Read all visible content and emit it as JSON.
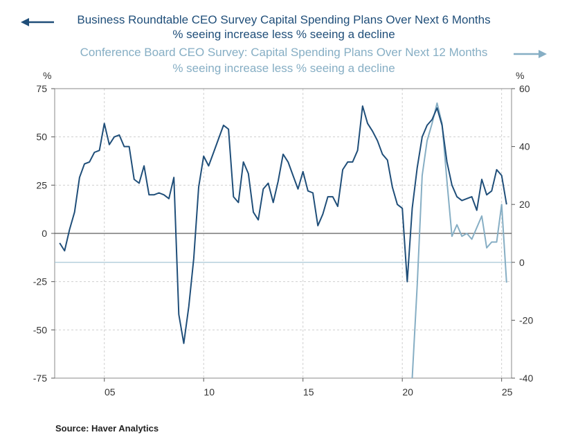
{
  "source": "Source:  Haver Analytics",
  "chart_data": {
    "type": "line",
    "titles": {
      "series1_line1": "Business Roundtable CEO Survey Capital Spending Plans Over Next 6 Months",
      "series1_line2": "% seeing increase less % seeing a decline",
      "series2_line1": "Conference Board CEO Survey: Capital Spending Plans Over Next 12 Months",
      "series2_line2": "% seeing increase less % seeing a decline"
    },
    "left_axis": {
      "label": "%",
      "ylim": [
        -75,
        75
      ],
      "ticks": [
        75,
        50,
        25,
        0,
        -25,
        -50,
        -75
      ]
    },
    "right_axis": {
      "label": "%",
      "ylim": [
        -40,
        60
      ],
      "ticks": [
        60,
        40,
        20,
        0,
        -20,
        -40
      ]
    },
    "x_axis": {
      "xlim": [
        2002.5,
        2025.5
      ],
      "ticks": [
        {
          "x": 2005,
          "label": "05"
        },
        {
          "x": 2010,
          "label": "10"
        },
        {
          "x": 2015,
          "label": "15"
        },
        {
          "x": 2020,
          "label": "20"
        },
        {
          "x": 2025,
          "label": "25"
        }
      ]
    },
    "colors": {
      "series1": "#1f4e79",
      "series2": "#86aec4"
    },
    "series": [
      {
        "axis": "left",
        "x": [
          2002.75,
          2003.0,
          2003.25,
          2003.5,
          2003.75,
          2004.0,
          2004.25,
          2004.5,
          2004.75,
          2005.0,
          2005.25,
          2005.5,
          2005.75,
          2006.0,
          2006.25,
          2006.5,
          2006.75,
          2007.0,
          2007.25,
          2007.5,
          2007.75,
          2008.0,
          2008.25,
          2008.5,
          2008.75,
          2009.0,
          2009.25,
          2009.5,
          2009.75,
          2010.0,
          2010.25,
          2010.5,
          2010.75,
          2011.0,
          2011.25,
          2011.5,
          2011.75,
          2012.0,
          2012.25,
          2012.5,
          2012.75,
          2013.0,
          2013.25,
          2013.5,
          2013.75,
          2014.0,
          2014.25,
          2014.5,
          2014.75,
          2015.0,
          2015.25,
          2015.5,
          2015.75,
          2016.0,
          2016.25,
          2016.5,
          2016.75,
          2017.0,
          2017.25,
          2017.5,
          2017.75,
          2018.0,
          2018.25,
          2018.5,
          2018.75,
          2019.0,
          2019.25,
          2019.5,
          2019.75,
          2020.0,
          2020.25,
          2020.5,
          2020.75,
          2021.0,
          2021.25,
          2021.5,
          2021.75,
          2022.0,
          2022.25,
          2022.5,
          2022.75,
          2023.0,
          2023.25,
          2023.5,
          2023.75,
          2024.0,
          2024.25,
          2024.5,
          2024.75,
          2025.0,
          2025.25
        ],
        "y": [
          -5,
          -9,
          2,
          11,
          29,
          36,
          37,
          42,
          43,
          57,
          46,
          50,
          51,
          45,
          45,
          28,
          26,
          35,
          20,
          20,
          21,
          20,
          18,
          29,
          -42,
          -57,
          -38,
          -13,
          24,
          40,
          35,
          42,
          49,
          56,
          54,
          19,
          16,
          37,
          31,
          11,
          7,
          23,
          26,
          16,
          27,
          41,
          37,
          30,
          23,
          32,
          22,
          21,
          4,
          10,
          19,
          19,
          14,
          33,
          37,
          37,
          43,
          66,
          57,
          53,
          48,
          41,
          38,
          24,
          15,
          13,
          -25,
          13,
          34,
          50,
          56,
          59,
          65,
          56,
          37,
          25,
          19,
          17,
          18,
          19,
          12,
          28,
          20,
          22,
          33,
          30,
          15
        ]
      },
      {
        "axis": "right",
        "x": [
          2020.5,
          2020.75,
          2021.0,
          2021.25,
          2021.5,
          2021.75,
          2022.0,
          2022.25,
          2022.5,
          2022.75,
          2023.0,
          2023.25,
          2023.5,
          2023.75,
          2024.0,
          2024.25,
          2024.5,
          2024.75,
          2025.0,
          2025.25
        ],
        "y": [
          -40,
          -8,
          30,
          42,
          48,
          55,
          48,
          28,
          9,
          13,
          9,
          10,
          8,
          12,
          16,
          5,
          7,
          7,
          20,
          -7
        ]
      }
    ]
  }
}
